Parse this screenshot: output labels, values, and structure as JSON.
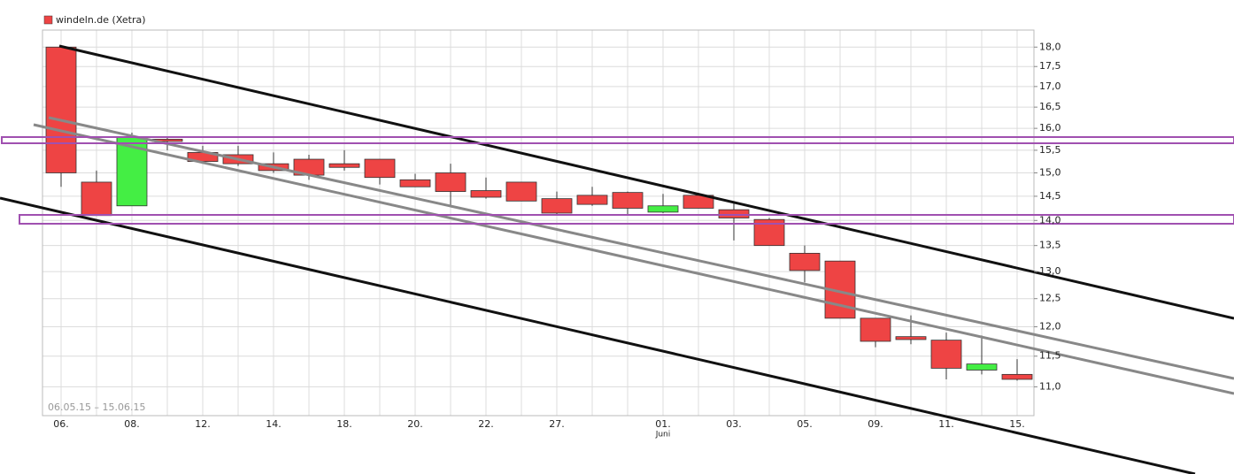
{
  "chart_data": {
    "type": "candlestick",
    "legend": "windeln.de (Xetra)",
    "date_range": "06.05.15 – 15.06.15",
    "month_label": "Juni",
    "month_label_index": 17,
    "categories": [
      "06.",
      null,
      "08.",
      null,
      "12.",
      null,
      "14.",
      null,
      "18.",
      null,
      "20.",
      null,
      "22.",
      null,
      "27.",
      null,
      null,
      "01.",
      null,
      "03.",
      null,
      "05.",
      null,
      "09.",
      null,
      "11.",
      null,
      "15."
    ],
    "series": [
      {
        "name": "windeln.de (Xetra)",
        "up_color": "#44ee44",
        "down_color": "#ee4444",
        "open": [
          18.0,
          14.8,
          14.3,
          15.75,
          15.45,
          15.4,
          15.2,
          15.3,
          15.2,
          15.3,
          14.85,
          15.0,
          14.62,
          14.8,
          14.45,
          14.52,
          14.58,
          14.17,
          14.52,
          14.22,
          14.02,
          13.35,
          13.2,
          12.15,
          11.83,
          11.77,
          11.27,
          11.2
        ],
        "high": [
          18.0,
          15.05,
          15.9,
          15.8,
          15.6,
          15.6,
          15.45,
          15.4,
          15.5,
          15.3,
          14.98,
          15.2,
          14.9,
          14.8,
          14.6,
          14.7,
          14.6,
          14.55,
          14.55,
          14.35,
          14.05,
          13.5,
          13.2,
          12.15,
          12.2,
          11.9,
          11.85,
          11.45
        ],
        "low": [
          14.7,
          14.1,
          14.3,
          15.5,
          15.2,
          15.15,
          15.0,
          14.85,
          15.05,
          14.75,
          14.7,
          14.3,
          14.45,
          14.4,
          14.1,
          14.3,
          14.1,
          14.15,
          14.25,
          13.6,
          13.5,
          12.8,
          12.15,
          11.65,
          11.7,
          11.12,
          11.2,
          11.1
        ],
        "close": [
          15.0,
          14.1,
          15.8,
          15.7,
          15.25,
          15.2,
          15.05,
          14.95,
          15.12,
          14.9,
          14.7,
          14.6,
          14.48,
          14.4,
          14.15,
          14.33,
          14.25,
          14.3,
          14.25,
          14.05,
          13.5,
          13.02,
          12.15,
          11.75,
          11.78,
          11.3,
          11.37,
          11.12
        ]
      }
    ],
    "log_scale": true,
    "grid": true,
    "ylim": [
      10.55,
      18.45
    ],
    "yticks": [
      {
        "value": 11.0,
        "label": "11,0"
      },
      {
        "value": 11.5,
        "label": "11,5"
      },
      {
        "value": 12.0,
        "label": "12,0"
      },
      {
        "value": 12.5,
        "label": "12,5"
      },
      {
        "value": 13.0,
        "label": "13,0"
      },
      {
        "value": 13.5,
        "label": "13,5"
      },
      {
        "value": 14.0,
        "label": "14,0"
      },
      {
        "value": 14.5,
        "label": "14,5"
      },
      {
        "value": 15.0,
        "label": "15,0"
      },
      {
        "value": 15.5,
        "label": "15,5"
      },
      {
        "value": 16.0,
        "label": "16,0"
      },
      {
        "value": 16.5,
        "label": "16,5"
      },
      {
        "value": 17.0,
        "label": "17,0"
      },
      {
        "value": 17.5,
        "label": "17,5"
      },
      {
        "value": 18.0,
        "label": "18,0"
      }
    ]
  }
}
